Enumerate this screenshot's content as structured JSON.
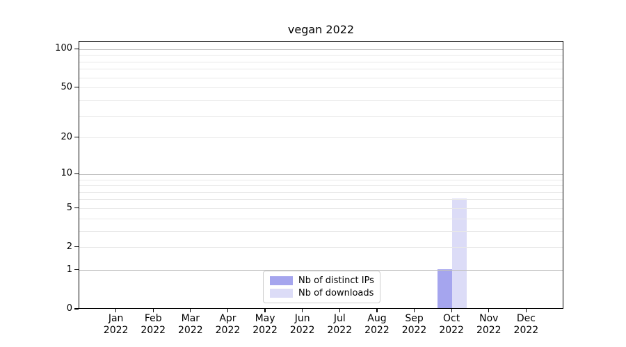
{
  "window": {
    "background": "#ffffff"
  },
  "chart_data": {
    "type": "bar",
    "title": "vegan 2022",
    "categories": [
      "Jan",
      "Feb",
      "Mar",
      "Apr",
      "May",
      "Jun",
      "Jul",
      "Aug",
      "Sep",
      "Oct",
      "Nov",
      "Dec"
    ],
    "category_year": "2022",
    "series": [
      {
        "name": "Nb of distinct IPs",
        "color": "#a5a5ee",
        "values": [
          0,
          0,
          0,
          0,
          0,
          0,
          0,
          0,
          0,
          1,
          0,
          0
        ]
      },
      {
        "name": "Nb of downloads",
        "color": "#dcdcf7",
        "values": [
          0,
          0,
          0,
          0,
          0,
          0,
          0,
          0,
          0,
          6,
          0,
          0
        ]
      }
    ],
    "xlabel": "",
    "ylabel": "",
    "yscale": "log1p",
    "ylim": [
      0,
      115
    ],
    "yticks": [
      100,
      50,
      20,
      10,
      5,
      2,
      1,
      0
    ],
    "major_gridlines": [
      1,
      10,
      100
    ],
    "minor_gridlines": [
      2,
      3,
      4,
      5,
      6,
      7,
      8,
      9,
      20,
      30,
      40,
      50,
      60,
      70,
      80,
      90
    ],
    "grid": true,
    "legend_position": "lower center"
  },
  "colors": {
    "axis": "#000000",
    "text": "#000000",
    "major_grid": "#c0c0c0",
    "minor_grid": "#e8e8e8",
    "legend_border": "#cccccc",
    "plot_background": "#ffffff"
  }
}
